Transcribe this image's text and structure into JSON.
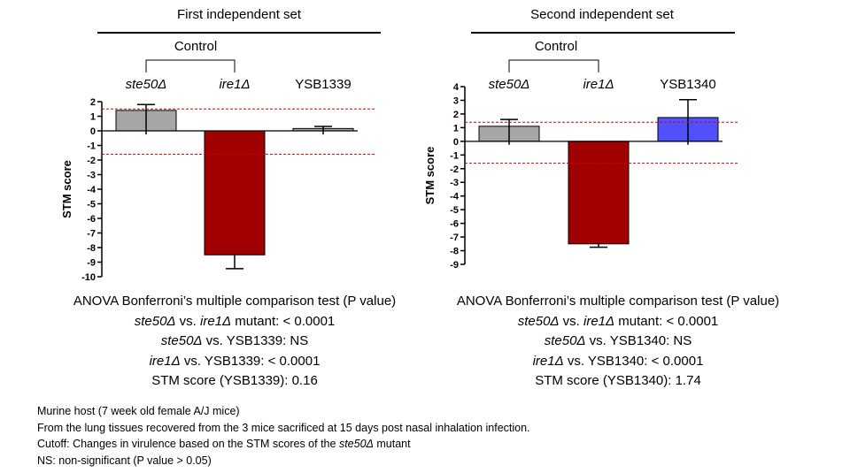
{
  "chart_data": [
    {
      "type": "bar",
      "title": "First independent set",
      "group_label": "Control",
      "ylabel": "STM score",
      "ylim": [
        -10,
        2
      ],
      "ticks": [
        2,
        1,
        0,
        -1,
        -2,
        -3,
        -4,
        -5,
        -6,
        -7,
        -8,
        -9,
        -10
      ],
      "cutoffs": [
        1.5,
        -1.6
      ],
      "categories": [
        {
          "label": "ste50Δ",
          "italic": true
        },
        {
          "label": "ire1Δ",
          "italic": true
        },
        {
          "label": "YSB1339",
          "italic": false
        }
      ],
      "values": [
        1.4,
        -8.5,
        0.16
      ],
      "errors_upper": [
        1.8,
        null,
        0.3
      ],
      "errors_lower": [
        -0.25,
        -9.45,
        -0.25
      ],
      "colors": [
        "#a6a6a6",
        "#a00000",
        "#a6a6a6"
      ]
    },
    {
      "type": "bar",
      "title": "Second independent set",
      "group_label": "Control",
      "ylabel": "STM score",
      "ylim": [
        -9,
        4
      ],
      "ticks": [
        4,
        3,
        2,
        1,
        0,
        -1,
        -2,
        -3,
        -4,
        -5,
        -6,
        -7,
        -8,
        -9
      ],
      "cutoffs": [
        1.4,
        -1.6
      ],
      "categories": [
        {
          "label": "ste50Δ",
          "italic": true
        },
        {
          "label": "ire1Δ",
          "italic": true
        },
        {
          "label": "YSB1340",
          "italic": false
        }
      ],
      "values": [
        1.1,
        -7.5,
        1.74
      ],
      "errors_upper": [
        1.6,
        null,
        3.05
      ],
      "errors_lower": [
        -0.25,
        -7.75,
        -0.25
      ],
      "colors": [
        "#a6a6a6",
        "#a00000",
        "#5050ff"
      ]
    }
  ],
  "left_stats": {
    "heading": "ANOVA Bonferroni’s multiple comparison test (P value)",
    "l1a": "ste50Δ",
    "l1b": " vs. ",
    "l1c": "ire1Δ",
    "l1d": " mutant: < 0.0001",
    "l2a": "ste50Δ",
    "l2b": " vs. YSB1339: NS",
    "l3a": "ire1Δ",
    "l3b": " vs. YSB1339: < 0.0001",
    "l4": "STM score (YSB1339): 0.16"
  },
  "right_stats": {
    "heading": "ANOVA Bonferroni’s multiple comparison test (P value)",
    "l1a": "ste50Δ",
    "l1b": " vs. ",
    "l1c": "ire1Δ",
    "l1d": " mutant: < 0.0001",
    "l2a": "ste50Δ",
    "l2b": " vs. YSB1340: NS",
    "l3a": "ire1Δ",
    "l3b": " vs. YSB1340: < 0.0001",
    "l4": "STM score (YSB1340): 1.74"
  },
  "notes": {
    "line1": "Murine host (7 week old female A/J mice)",
    "line2": "From  the lung tissues recovered from the 3 mice sacrificed at 15 days post nasal inhalation infection.",
    "line3a": "Cutoff: Changes in virulence based on the STM scores of the ",
    "line3b": "ste50Δ",
    "line3c": " mutant",
    "line4": "NS: non-significant (P value > 0.05)"
  }
}
